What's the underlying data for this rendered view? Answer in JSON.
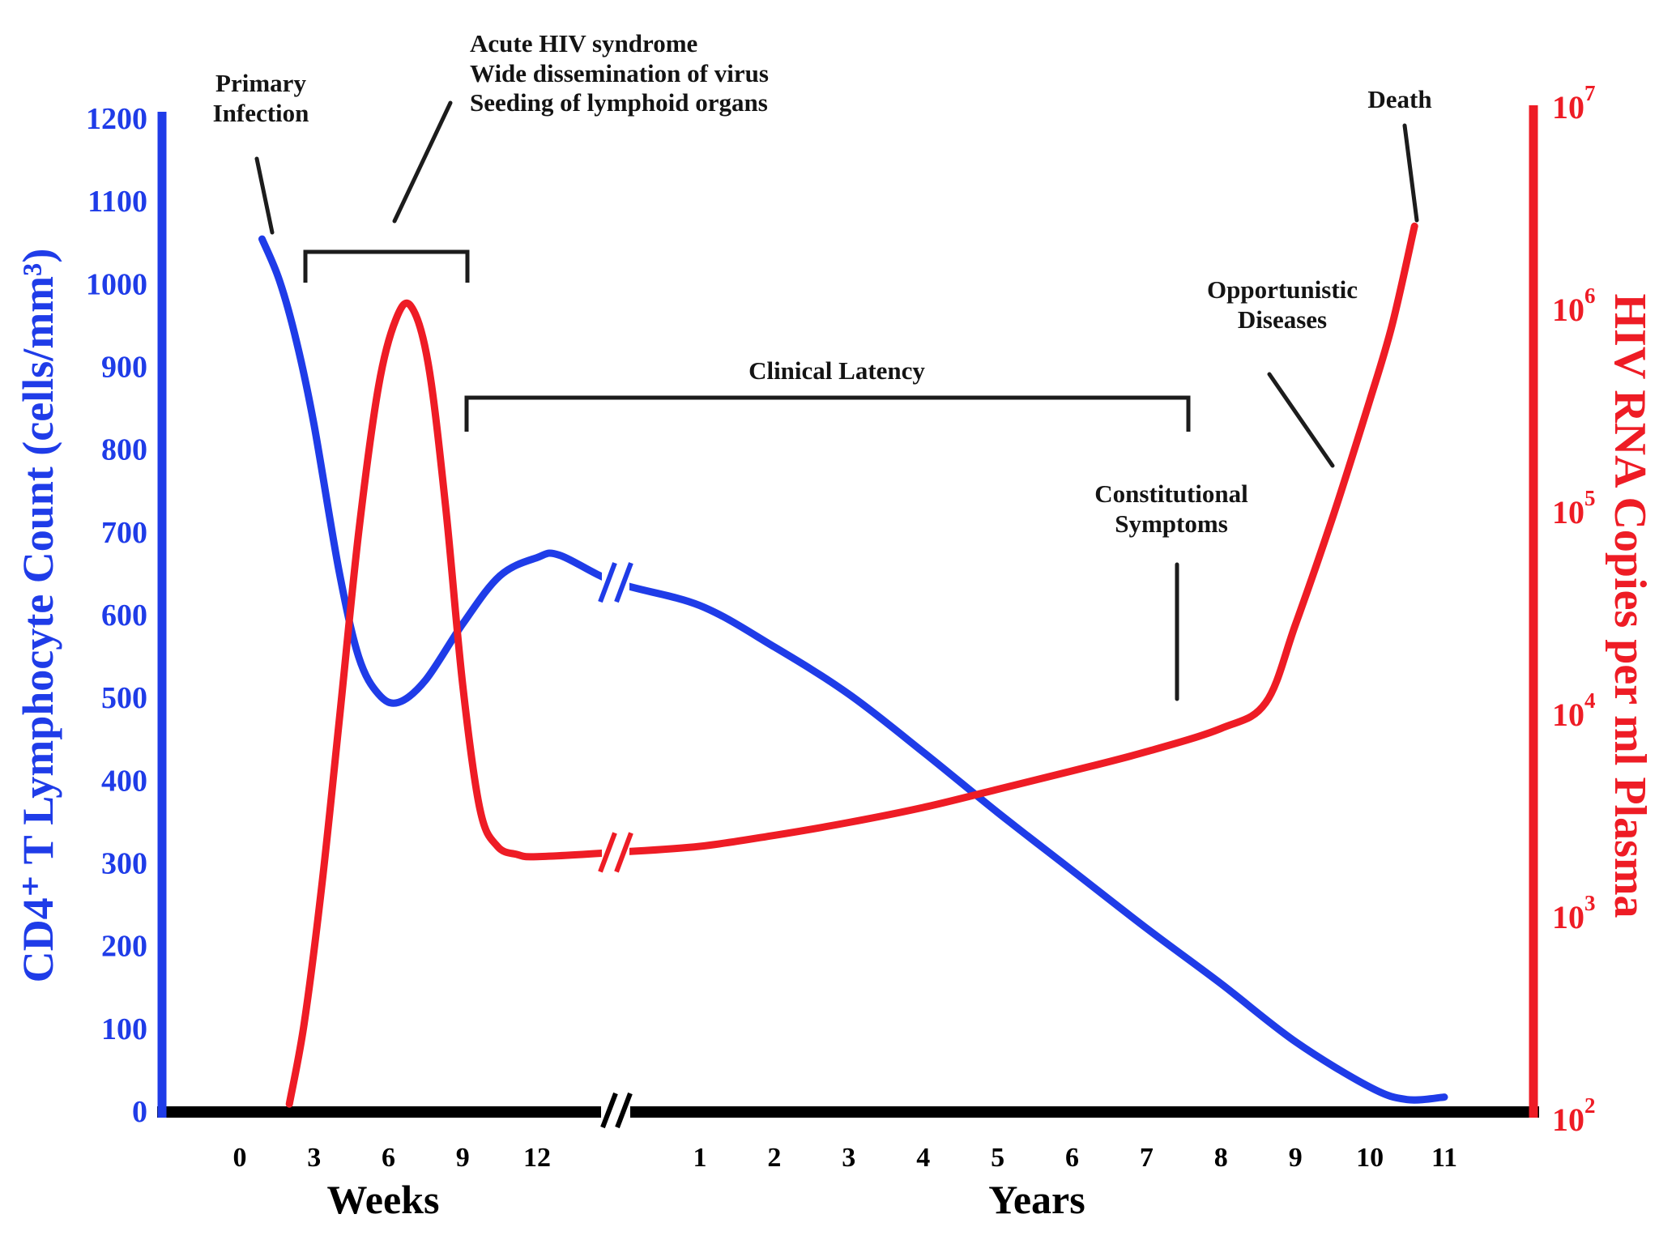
{
  "figure": {
    "background": "#ffffff",
    "text_color": "#141414"
  },
  "left_axis": {
    "title": "CD4⁺ T Lymphocyte Count (cells/mm³)",
    "color": "#1f3ce8",
    "ticks": [
      0,
      100,
      200,
      300,
      400,
      500,
      600,
      700,
      800,
      900,
      1000,
      1100,
      1200
    ]
  },
  "right_axis": {
    "title": "HIV RNA Copies per ml Plasma",
    "color": "#ee1c25",
    "tick_base": "10",
    "tick_exponents": [
      2,
      3,
      4,
      5,
      6,
      7
    ]
  },
  "x_axis": {
    "color": "#000000",
    "weeks_label": "Weeks",
    "years_label": "Years",
    "week_ticks": [
      0,
      3,
      6,
      9,
      12
    ],
    "year_ticks": [
      1,
      2,
      3,
      4,
      5,
      6,
      7,
      8,
      9,
      10,
      11
    ]
  },
  "annotations": {
    "primary_infection": {
      "text": "Primary\nInfection"
    },
    "acute": {
      "text": "Acute HIV syndrome\nWide dissemination of virus\nSeeding of lymphoid organs"
    },
    "clinical_latency": {
      "text": "Clinical Latency"
    },
    "constitutional": {
      "text": "Constitutional\nSymptoms"
    },
    "opportunistic": {
      "text": "Opportunistic\nDiseases"
    },
    "death": {
      "text": "Death"
    }
  },
  "chart_data": {
    "type": "line",
    "title": "",
    "x_axis": {
      "segments": [
        {
          "unit": "Weeks",
          "ticks": [
            0,
            3,
            6,
            9,
            12
          ]
        },
        {
          "unit": "Years",
          "ticks": [
            1,
            2,
            3,
            4,
            5,
            6,
            7,
            8,
            9,
            10,
            11
          ]
        }
      ],
      "axis_break": true
    },
    "y_left": {
      "label": "CD4+ T Lymphocyte Count (cells/mm3)",
      "range": [
        0,
        1200
      ],
      "tick_step": 100,
      "color": "#1f3ce8"
    },
    "y_right": {
      "label": "HIV RNA Copies per ml Plasma",
      "scale": "log10",
      "range_exponents": [
        2,
        7
      ],
      "color": "#ee1c25"
    },
    "legend": "none",
    "grid": false,
    "series": [
      {
        "name": "CD4+ T lymphocyte count (cells/mm3)",
        "axis": "left",
        "color": "#1f3ce8",
        "points": [
          [
            "w",
            0.9,
            1055
          ],
          [
            "w",
            1.6,
            1005
          ],
          [
            "w",
            2.3,
            930
          ],
          [
            "w",
            3,
            830
          ],
          [
            "w",
            4,
            655
          ],
          [
            "w",
            4.8,
            550
          ],
          [
            "w",
            5.6,
            505
          ],
          [
            "w",
            6.4,
            495
          ],
          [
            "w",
            7.5,
            522
          ],
          [
            "w",
            9,
            590
          ],
          [
            "w",
            10.5,
            648
          ],
          [
            "w",
            12,
            670
          ],
          [
            "w",
            12.9,
            673
          ],
          [
            "b",
            0,
            640
          ],
          [
            "y",
            1,
            612
          ],
          [
            "y",
            2,
            562
          ],
          [
            "y",
            3,
            505
          ],
          [
            "y",
            4,
            435
          ],
          [
            "y",
            5,
            362
          ],
          [
            "y",
            6,
            292
          ],
          [
            "y",
            7,
            222
          ],
          [
            "y",
            8,
            155
          ],
          [
            "y",
            9,
            85
          ],
          [
            "y",
            10,
            30
          ],
          [
            "y",
            10.5,
            15
          ],
          [
            "y",
            11,
            18
          ]
        ]
      },
      {
        "name": "HIV RNA copies per ml plasma",
        "axis": "right",
        "color": "#ee1c25",
        "points": [
          [
            "w",
            2,
            120
          ],
          [
            "w",
            2.6,
            300
          ],
          [
            "w",
            3.3,
            1400
          ],
          [
            "w",
            4,
            9000
          ],
          [
            "w",
            4.8,
            80000
          ],
          [
            "w",
            5.6,
            420000
          ],
          [
            "w",
            6.3,
            900000
          ],
          [
            "w",
            6.9,
            1050000
          ],
          [
            "w",
            7.6,
            550000
          ],
          [
            "w",
            8.3,
            110000
          ],
          [
            "w",
            9,
            14000
          ],
          [
            "w",
            9.7,
            3400
          ],
          [
            "w",
            10.4,
            2250
          ],
          [
            "w",
            11.2,
            2050
          ],
          [
            "w",
            12,
            2000
          ],
          [
            "b",
            0,
            2100
          ],
          [
            "y",
            1,
            2250
          ],
          [
            "y",
            2,
            2550
          ],
          [
            "y",
            3,
            2950
          ],
          [
            "y",
            4,
            3500
          ],
          [
            "y",
            5,
            4300
          ],
          [
            "y",
            6,
            5300
          ],
          [
            "y",
            7,
            6600
          ],
          [
            "y",
            8,
            8600
          ],
          [
            "y",
            8.6,
            11500
          ],
          [
            "y",
            9,
            28000
          ],
          [
            "y",
            9.5,
            95000
          ],
          [
            "y",
            10,
            360000
          ],
          [
            "y",
            10.3,
            850000
          ],
          [
            "y",
            10.6,
            2600000
          ]
        ]
      }
    ],
    "annotations": [
      "Primary Infection",
      "Acute HIV syndrome / Wide dissemination of virus / Seeding of lymphoid organs (weeks ~3-9 bracket)",
      "Clinical Latency (weeks ~9 to years ~8 bracket)",
      "Constitutional Symptoms (points to HIV RNA curve near year 8)",
      "Opportunistic Diseases (points to HIV RNA curve near year 9-10)",
      "Death (points to HIV RNA curve end near year 11)"
    ]
  }
}
